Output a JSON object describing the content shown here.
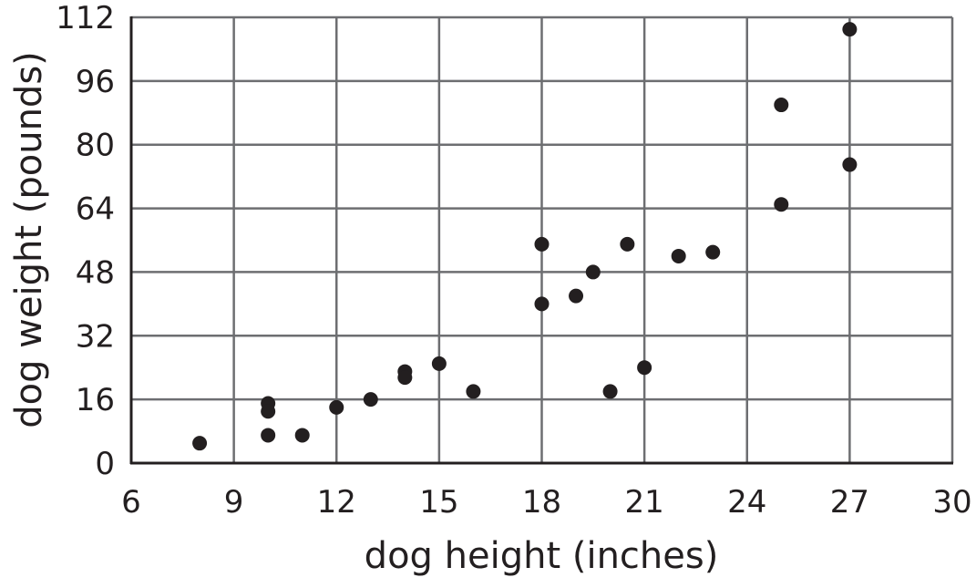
{
  "chart_data": {
    "type": "scatter",
    "title": "",
    "xlabel": "dog height (inches)",
    "ylabel": "dog weight (pounds)",
    "xlim": [
      6,
      30
    ],
    "ylim": [
      0,
      112
    ],
    "xticks": [
      6,
      9,
      12,
      15,
      18,
      21,
      24,
      27,
      30
    ],
    "yticks": [
      0,
      16,
      32,
      48,
      64,
      80,
      96,
      112
    ],
    "grid": true,
    "point_color": "#231f20",
    "grid_color": "#6d6e71",
    "points": [
      [
        8,
        5
      ],
      [
        10,
        15
      ],
      [
        10,
        13
      ],
      [
        10,
        7
      ],
      [
        11,
        7
      ],
      [
        12,
        14
      ],
      [
        13,
        16
      ],
      [
        14,
        23
      ],
      [
        14,
        21.5
      ],
      [
        15,
        25
      ],
      [
        16,
        18
      ],
      [
        18,
        55
      ],
      [
        18,
        40
      ],
      [
        19,
        42
      ],
      [
        19.5,
        48
      ],
      [
        20.5,
        55
      ],
      [
        20,
        18
      ],
      [
        21,
        24
      ],
      [
        22,
        52
      ],
      [
        23,
        53
      ],
      [
        25,
        90
      ],
      [
        25,
        65
      ],
      [
        27,
        109
      ],
      [
        27,
        75
      ]
    ]
  }
}
